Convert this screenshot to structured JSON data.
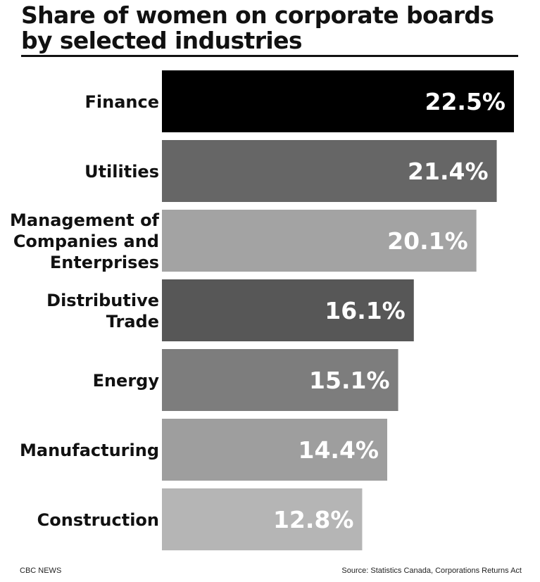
{
  "header": {
    "title": "Share of women on corporate boards by selected industries"
  },
  "footer": {
    "credit": "CBC NEWS",
    "source": "Source: Statistics Canada, Corporations Returns Act"
  },
  "chart_data": {
    "type": "bar",
    "orientation": "horizontal",
    "title": "Share of women on corporate boards by selected industries",
    "xlabel": "",
    "ylabel": "",
    "grid": false,
    "categories": [
      [
        "Finance"
      ],
      [
        "Utilities"
      ],
      [
        "Management of",
        "Companies and",
        "Enterprises"
      ],
      [
        "Distributive",
        "Trade"
      ],
      [
        "Energy"
      ],
      [
        "Manufacturing"
      ],
      [
        "Construction"
      ]
    ],
    "values": [
      22.5,
      21.4,
      20.1,
      16.1,
      15.1,
      14.4,
      12.8
    ],
    "value_labels": [
      "22.5%",
      "21.4%",
      "20.1%",
      "16.1%",
      "15.1%",
      "14.4%",
      "12.8%"
    ],
    "colors": [
      "#000000",
      "#666666",
      "#a3a3a3",
      "#575757",
      "#7d7d7d",
      "#9e9e9e",
      "#b5b5b5"
    ],
    "xlim": [
      0,
      22.5
    ]
  }
}
